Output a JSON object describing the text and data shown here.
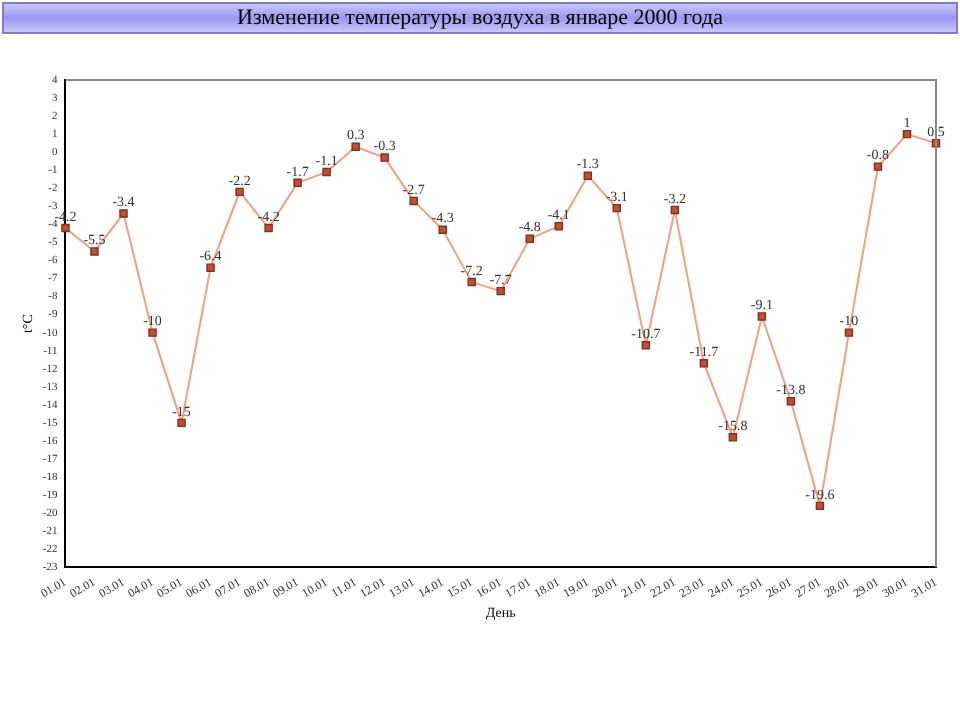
{
  "chart_data": {
    "type": "line",
    "title": "Изменение температуры воздуха в январе 2000 года",
    "xlabel": "День",
    "ylabel": "t°C",
    "categories": [
      "01.01",
      "02.01",
      "03.01",
      "04.01",
      "05.01",
      "06.01",
      "07.01",
      "08.01",
      "09.01",
      "10.01",
      "11.01",
      "12.01",
      "13.01",
      "14.01",
      "15.01",
      "16.01",
      "17.01",
      "18.01",
      "19.01",
      "20.01",
      "21.01",
      "22.01",
      "23.01",
      "24.01",
      "25.01",
      "26.01",
      "27.01",
      "28.01",
      "29.01",
      "30.01",
      "31.01"
    ],
    "series": [
      {
        "color": "#f0a080",
        "values": [
          -4.2,
          -5.5,
          -3.4,
          -10,
          -15,
          -6.4,
          -2.2,
          -4.2,
          -1.7,
          -1.1,
          0.3,
          -0.3,
          -2.7,
          -4.3,
          -7.2,
          -7.7,
          -4.8,
          -4.1,
          -1.3,
          -3.1,
          -10.7,
          -3.2,
          -11.7,
          -15.8,
          -9.1,
          -13.8,
          -19.6,
          -10,
          -0.8,
          1,
          0.5
        ]
      }
    ],
    "ylim": [
      -23,
      4
    ],
    "yticks": [
      -23,
      -22,
      -21,
      -20,
      -19,
      -18,
      -17,
      -16,
      -15,
      -14,
      -13,
      -12,
      -11,
      -10,
      -9,
      -8,
      -7,
      -6,
      -5,
      -4,
      -3,
      -2,
      -1,
      0,
      1,
      2,
      3,
      4
    ],
    "grid": false,
    "legend": false,
    "marker": "square",
    "line_style": "solid",
    "data_labels": true
  }
}
